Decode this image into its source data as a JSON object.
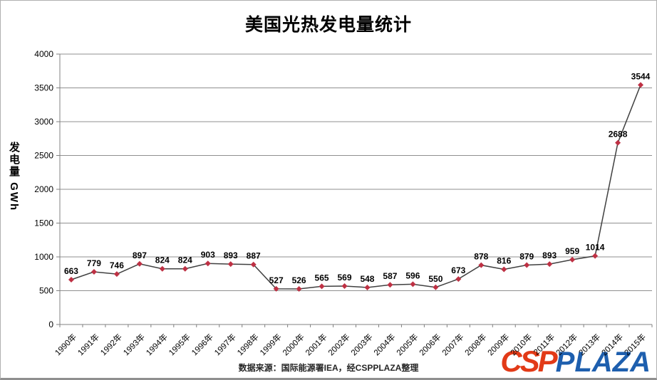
{
  "chart": {
    "title": "美国光热发电量统计",
    "y_axis_label": "发电量 GWh",
    "source_note": "数据来源：国际能源署IEA，经CSPPLAZA整理",
    "logo": {
      "csp": "CSP",
      "plaza": "PLAZA",
      "csp_color": "#e23a17",
      "plaza_color": "#1e5fae"
    }
  },
  "chart_data": {
    "type": "line",
    "title": "美国光热发电量统计",
    "xlabel": "",
    "ylabel": "发电量 GWh",
    "categories": [
      "1990年",
      "1991年",
      "1992年",
      "1993年",
      "1994年",
      "1995年",
      "1996年",
      "1997年",
      "1998年",
      "1999年",
      "2000年",
      "2001年",
      "2002年",
      "2003年",
      "2004年",
      "2005年",
      "2006年",
      "2007年",
      "2008年",
      "2009年",
      "2010年",
      "2011年",
      "2012年",
      "2013年",
      "2014年",
      "2015年"
    ],
    "values": [
      663,
      779,
      746,
      897,
      824,
      824,
      903,
      893,
      887,
      527,
      526,
      565,
      569,
      548,
      587,
      596,
      550,
      673,
      878,
      816,
      879,
      893,
      959,
      1014,
      2688,
      3544
    ],
    "ylim": [
      0,
      4000
    ],
    "y_tick_step": 500,
    "grid": true,
    "legend_position": "none",
    "marker": "diamond",
    "data_labels": true,
    "colors": {
      "line": "#404040",
      "marker": "#be3144",
      "grid": "#8f8f8f",
      "axis": "#808080",
      "label_text": "#000000"
    }
  }
}
